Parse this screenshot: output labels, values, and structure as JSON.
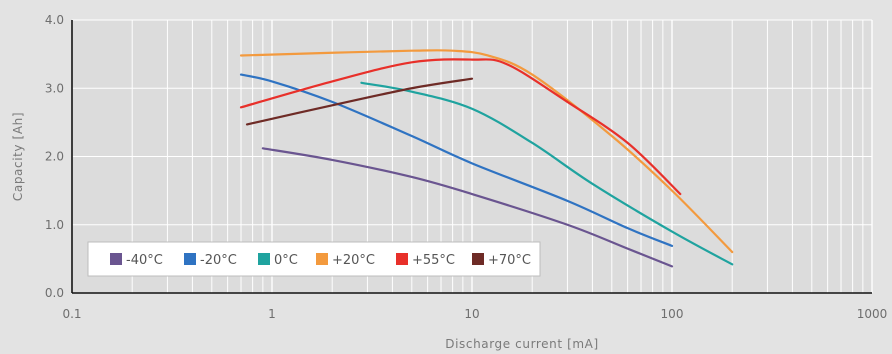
{
  "chart_data": {
    "type": "line",
    "xscale": "log",
    "xlim": [
      0.1,
      1000
    ],
    "ylim": [
      0,
      4
    ],
    "grid": true,
    "legend_position": "bottom-left",
    "xlabel": "Discharge current [mA]",
    "ylabel": "Capacity [Ah]",
    "x_tick_labels": [
      "0.1",
      "1",
      "10",
      "100",
      "1000"
    ],
    "y_tick_labels": [
      "0.0",
      "1.0",
      "2.0",
      "3.0",
      "4.0"
    ],
    "series": [
      {
        "name": "-40°C",
        "color": "#6a5590",
        "points": [
          [
            0.9,
            2.12
          ],
          [
            2,
            1.95
          ],
          [
            5,
            1.7
          ],
          [
            10,
            1.45
          ],
          [
            30,
            1.0
          ],
          [
            60,
            0.65
          ],
          [
            100,
            0.39
          ]
        ]
      },
      {
        "name": "-20°C",
        "color": "#2f73c2",
        "points": [
          [
            0.7,
            3.2
          ],
          [
            1,
            3.1
          ],
          [
            2,
            2.8
          ],
          [
            5,
            2.3
          ],
          [
            10,
            1.9
          ],
          [
            30,
            1.35
          ],
          [
            60,
            0.95
          ],
          [
            100,
            0.69
          ]
        ]
      },
      {
        "name": "0°C",
        "color": "#1fa39f",
        "points": [
          [
            2.8,
            3.08
          ],
          [
            5,
            2.95
          ],
          [
            10,
            2.7
          ],
          [
            20,
            2.2
          ],
          [
            40,
            1.6
          ],
          [
            100,
            0.9
          ],
          [
            200,
            0.42
          ]
        ]
      },
      {
        "name": "+20°C",
        "color": "#f39a3e",
        "points": [
          [
            0.7,
            3.48
          ],
          [
            2,
            3.52
          ],
          [
            5,
            3.55
          ],
          [
            8,
            3.55
          ],
          [
            12,
            3.48
          ],
          [
            20,
            3.2
          ],
          [
            50,
            2.3
          ],
          [
            100,
            1.5
          ],
          [
            200,
            0.6
          ]
        ]
      },
      {
        "name": "+55°C",
        "color": "#e8302a",
        "points": [
          [
            0.7,
            2.72
          ],
          [
            2,
            3.1
          ],
          [
            5,
            3.38
          ],
          [
            10,
            3.42
          ],
          [
            15,
            3.35
          ],
          [
            30,
            2.8
          ],
          [
            60,
            2.2
          ],
          [
            110,
            1.45
          ]
        ]
      },
      {
        "name": "+70°C",
        "color": "#6e2b26",
        "points": [
          [
            0.75,
            2.47
          ],
          [
            2,
            2.75
          ],
          [
            5,
            3.0
          ],
          [
            10,
            3.14
          ]
        ]
      }
    ]
  }
}
